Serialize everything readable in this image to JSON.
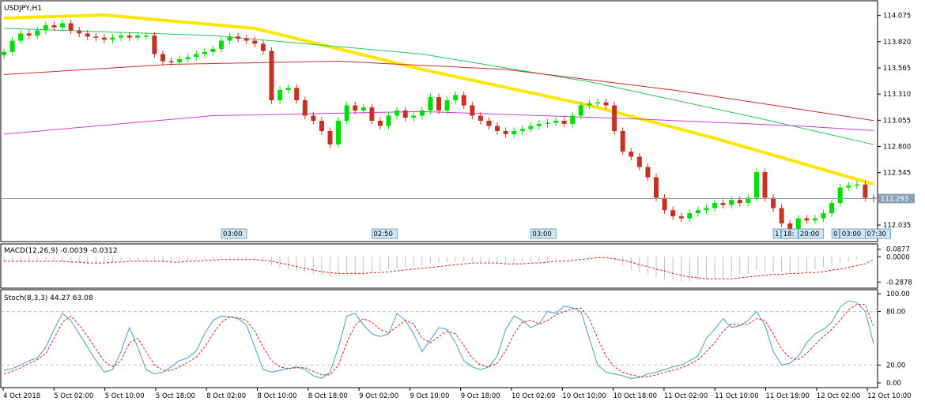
{
  "chart_data": [
    {
      "type": "candlestick",
      "title": "USDJPY,H1",
      "y_ticks": [
        "114.075",
        "113.820",
        "113.565",
        "113.310",
        "113.055",
        "112.800",
        "112.545",
        "112.035"
      ],
      "ylim": [
        111.92,
        114.18
      ],
      "current_price": "112.293",
      "price_path": [
        113.72,
        113.83,
        113.9,
        113.88,
        113.93,
        113.98,
        113.96,
        114.0,
        113.93,
        113.9,
        113.87,
        113.86,
        113.84,
        113.86,
        113.88,
        113.86,
        113.88,
        113.88,
        113.7,
        113.63,
        113.62,
        113.65,
        113.67,
        113.7,
        113.72,
        113.75,
        113.83,
        113.87,
        113.85,
        113.83,
        113.8,
        113.73,
        113.25,
        113.35,
        113.37,
        113.25,
        113.1,
        113.05,
        112.95,
        112.82,
        113.05,
        113.2,
        113.15,
        113.18,
        113.05,
        113.0,
        113.1,
        113.15,
        113.08,
        113.1,
        113.15,
        113.28,
        113.15,
        113.25,
        113.3,
        113.2,
        113.1,
        113.05,
        113.0,
        112.95,
        112.92,
        112.95,
        112.97,
        113.0,
        113.02,
        113.03,
        113.05,
        113.02,
        113.1,
        113.2,
        113.22,
        113.23,
        113.2,
        112.95,
        112.75,
        112.7,
        112.6,
        112.5,
        112.3,
        112.18,
        112.12,
        112.1,
        112.15,
        112.18,
        112.2,
        112.25,
        112.23,
        112.28,
        112.25,
        112.3,
        112.55,
        112.3,
        112.2,
        112.05,
        112.0,
        112.1,
        112.08,
        112.1,
        112.15,
        112.25,
        112.4,
        112.42,
        112.43,
        112.3,
        112.29
      ],
      "moving_averages": [
        {
          "color": "#ffe600",
          "points": [
            [
              0,
              114.05
            ],
            [
              12,
              114.08
            ],
            [
              30,
              113.95
            ],
            [
              50,
              113.55
            ],
            [
              70,
              113.2
            ],
            [
              85,
              112.88
            ],
            [
              105,
              112.41
            ]
          ]
        },
        {
          "color": "#22c95a",
          "points": [
            [
              0,
              113.95
            ],
            [
              25,
              113.88
            ],
            [
              50,
              113.7
            ],
            [
              70,
              113.43
            ],
            [
              90,
              113.08
            ],
            [
              105,
              112.8
            ]
          ]
        },
        {
          "color": "#d42b2b",
          "points": [
            [
              0,
              113.5
            ],
            [
              20,
              113.6
            ],
            [
              40,
              113.63
            ],
            [
              60,
              113.55
            ],
            [
              80,
              113.35
            ],
            [
              105,
              113.04
            ]
          ]
        },
        {
          "color": "#d63adb",
          "points": [
            [
              0,
              112.92
            ],
            [
              25,
              113.1
            ],
            [
              50,
              113.14
            ],
            [
              75,
              113.07
            ],
            [
              95,
              113.0
            ],
            [
              105,
              112.95
            ]
          ]
        }
      ],
      "time_markers": [
        {
          "label": "03:00",
          "at": 26
        },
        {
          "label": "02:50",
          "at": 44
        },
        {
          "label": "03:00",
          "at": 63
        },
        {
          "label": "1",
          "at": 92
        },
        {
          "label": "18:",
          "at": 93
        },
        {
          "label": "20:00",
          "at": 95
        },
        {
          "label": "0",
          "at": 99
        },
        {
          "label": "03:00",
          "at": 100
        },
        {
          "label": "07:30",
          "at": 103
        }
      ]
    },
    {
      "type": "bar",
      "title": "MACD(12,26,9) -0.0039 -0.0312",
      "y_ticks": [
        "0.0877",
        "0.0000",
        "-0.2878"
      ],
      "ylim": [
        -0.33,
        0.12
      ],
      "values": [
        -0.05,
        -0.06,
        -0.06,
        -0.05,
        -0.04,
        -0.04,
        -0.05,
        -0.06,
        -0.07,
        -0.07,
        -0.08,
        -0.07,
        -0.06,
        -0.06,
        -0.05,
        -0.04,
        -0.04,
        -0.05,
        -0.06,
        -0.06,
        -0.06,
        -0.05,
        -0.04,
        -0.03,
        -0.03,
        -0.03,
        -0.02,
        -0.02,
        -0.02,
        -0.03,
        -0.04,
        -0.06,
        -0.1,
        -0.13,
        -0.15,
        -0.17,
        -0.18,
        -0.2,
        -0.21,
        -0.22,
        -0.2,
        -0.19,
        -0.18,
        -0.17,
        -0.17,
        -0.16,
        -0.14,
        -0.13,
        -0.12,
        -0.11,
        -0.1,
        -0.08,
        -0.07,
        -0.06,
        -0.05,
        -0.05,
        -0.05,
        -0.06,
        -0.07,
        -0.08,
        -0.08,
        -0.08,
        -0.07,
        -0.06,
        -0.05,
        -0.04,
        -0.03,
        -0.02,
        -0.01,
        0.0,
        0.01,
        0.01,
        0.0,
        -0.05,
        -0.1,
        -0.15,
        -0.18,
        -0.2,
        -0.23,
        -0.26,
        -0.27,
        -0.28,
        -0.28,
        -0.27,
        -0.26,
        -0.25,
        -0.24,
        -0.22,
        -0.2,
        -0.19,
        -0.15,
        -0.16,
        -0.17,
        -0.17,
        -0.18,
        -0.17,
        -0.16,
        -0.14,
        -0.12,
        -0.1,
        -0.07,
        -0.05,
        -0.03,
        -0.01,
        -0.004
      ],
      "signal": [
        -0.05,
        -0.05,
        -0.05,
        -0.05,
        -0.05,
        -0.05,
        -0.05,
        -0.05,
        -0.06,
        -0.06,
        -0.07,
        -0.07,
        -0.07,
        -0.06,
        -0.06,
        -0.05,
        -0.05,
        -0.05,
        -0.05,
        -0.05,
        -0.06,
        -0.06,
        -0.05,
        -0.05,
        -0.04,
        -0.04,
        -0.03,
        -0.03,
        -0.03,
        -0.03,
        -0.03,
        -0.04,
        -0.05,
        -0.07,
        -0.09,
        -0.11,
        -0.13,
        -0.15,
        -0.17,
        -0.18,
        -0.19,
        -0.19,
        -0.19,
        -0.19,
        -0.18,
        -0.18,
        -0.17,
        -0.16,
        -0.15,
        -0.14,
        -0.13,
        -0.12,
        -0.11,
        -0.1,
        -0.09,
        -0.08,
        -0.07,
        -0.07,
        -0.07,
        -0.07,
        -0.08,
        -0.08,
        -0.08,
        -0.07,
        -0.07,
        -0.06,
        -0.05,
        -0.05,
        -0.04,
        -0.03,
        -0.02,
        -0.01,
        -0.01,
        -0.02,
        -0.04,
        -0.06,
        -0.09,
        -0.11,
        -0.14,
        -0.16,
        -0.19,
        -0.21,
        -0.23,
        -0.24,
        -0.25,
        -0.25,
        -0.25,
        -0.25,
        -0.24,
        -0.23,
        -0.22,
        -0.21,
        -0.2,
        -0.2,
        -0.19,
        -0.19,
        -0.18,
        -0.18,
        -0.17,
        -0.15,
        -0.14,
        -0.12,
        -0.1,
        -0.08,
        -0.03
      ]
    },
    {
      "type": "line",
      "title": "Stoch(8,3,3) 44.27 63.08",
      "y_ticks": [
        "100.00",
        "80.00",
        "20.00",
        "0.00"
      ],
      "ylim": [
        0,
        100
      ],
      "levels": [
        80,
        20
      ],
      "series": [
        {
          "color": "#3aa6c4",
          "values": [
            14,
            16,
            20,
            25,
            28,
            40,
            60,
            78,
            70,
            55,
            40,
            25,
            12,
            15,
            35,
            62,
            40,
            15,
            10,
            12,
            18,
            25,
            28,
            36,
            55,
            70,
            75,
            74,
            72,
            65,
            40,
            15,
            12,
            14,
            16,
            18,
            15,
            8,
            5,
            12,
            40,
            75,
            78,
            65,
            55,
            52,
            55,
            78,
            70,
            55,
            35,
            48,
            62,
            60,
            45,
            25,
            18,
            15,
            18,
            30,
            60,
            75,
            70,
            62,
            66,
            80,
            78,
            86,
            84,
            80,
            50,
            20,
            12,
            10,
            8,
            5,
            6,
            10,
            12,
            15,
            18,
            20,
            25,
            30,
            50,
            60,
            72,
            62,
            64,
            70,
            80,
            65,
            35,
            20,
            22,
            30,
            45,
            55,
            60,
            68,
            85,
            92,
            90,
            80,
            44
          ]
        },
        {
          "color": "#e02020",
          "values": [
            10,
            13,
            17,
            22,
            26,
            33,
            50,
            68,
            75,
            65,
            52,
            38,
            24,
            18,
            25,
            45,
            50,
            35,
            20,
            14,
            14,
            18,
            23,
            29,
            40,
            55,
            68,
            74,
            73,
            70,
            58,
            40,
            25,
            18,
            16,
            17,
            17,
            13,
            9,
            9,
            20,
            45,
            65,
            72,
            68,
            60,
            56,
            63,
            70,
            66,
            50,
            45,
            52,
            58,
            55,
            42,
            28,
            20,
            18,
            22,
            36,
            55,
            68,
            70,
            66,
            70,
            76,
            80,
            83,
            84,
            72,
            50,
            30,
            18,
            12,
            9,
            7,
            7,
            9,
            12,
            14,
            17,
            21,
            26,
            35,
            45,
            58,
            66,
            65,
            66,
            72,
            70,
            55,
            38,
            28,
            26,
            33,
            43,
            52,
            60,
            70,
            82,
            88,
            88,
            63
          ]
        }
      ]
    }
  ],
  "x_ticks": [
    "4 Oct 2018",
    "5 Oct 02:00",
    "5 Oct 10:00",
    "5 Oct 18:00",
    "8 Oct 02:00",
    "8 Oct 10:00",
    "8 Oct 18:00",
    "9 Oct 02:00",
    "9 Oct 10:00",
    "9 Oct 18:00",
    "10 Oct 02:00",
    "10 Oct 10:00",
    "10 Oct 18:00",
    "11 Oct 02:00",
    "11 Oct 10:00",
    "11 Oct 18:00",
    "12 Oct 02:00",
    "12 Oct 10:00"
  ],
  "colors": {
    "bull": "#00e000",
    "bear": "#c83222",
    "grid": "#c0c0c0",
    "frame": "#000000",
    "current_line": "#8ca0b4",
    "tag_bg": "#cfe6f5",
    "macd_hist": "#c0c0c0",
    "macd_signal": "#e02020"
  }
}
